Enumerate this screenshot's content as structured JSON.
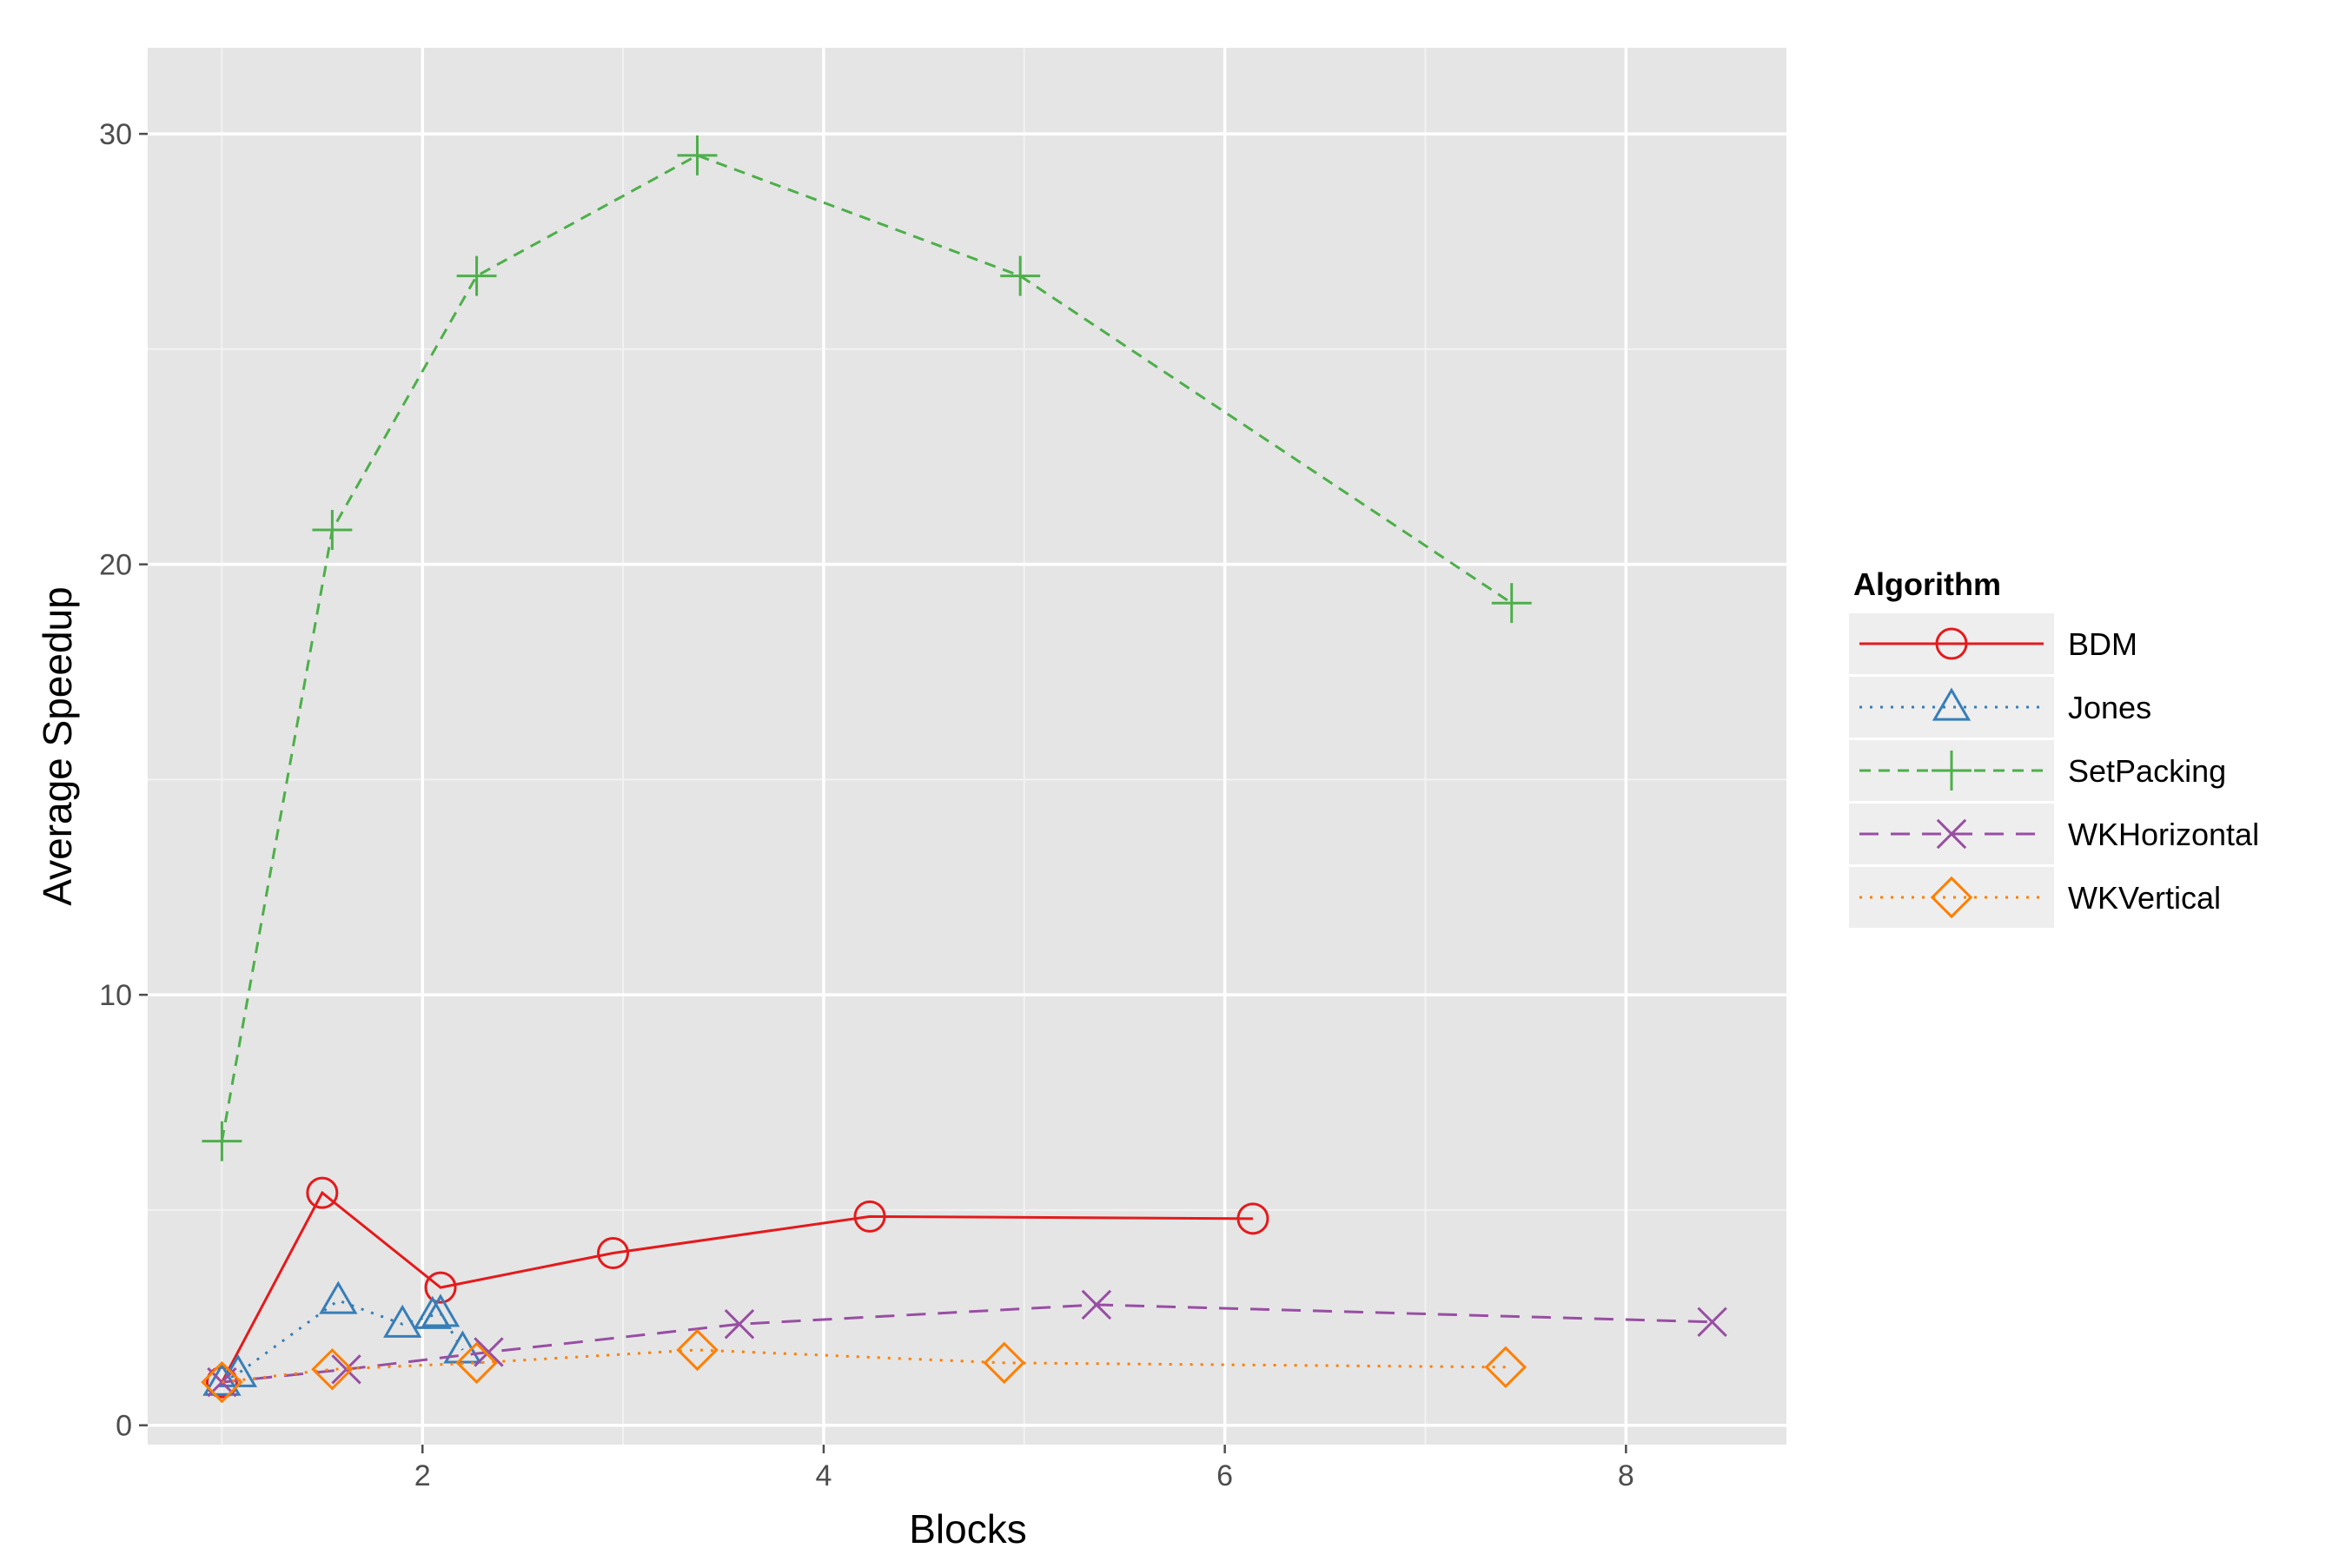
{
  "chart_data": {
    "type": "line",
    "xlabel": "Blocks",
    "ylabel": "Average Speedup",
    "xlim": [
      0.63,
      8.8
    ],
    "ylim": [
      -0.45,
      32.0
    ],
    "x_ticks": [
      2,
      4,
      6,
      8
    ],
    "x_tick_labels": [
      "2",
      "4",
      "6",
      "8"
    ],
    "x_minor_ticks": [
      1,
      3,
      5,
      7
    ],
    "y_ticks": [
      0,
      10,
      20,
      30
    ],
    "y_tick_labels": [
      "0",
      "10",
      "20",
      "30"
    ],
    "y_minor_ticks": [
      5,
      15,
      25
    ],
    "grid": true,
    "background": "#e5e5e5",
    "legend": {
      "title": "Algorithm",
      "position": "right"
    },
    "series": [
      {
        "name": "BDM",
        "color": "#e41a1c",
        "marker": "circle",
        "dash": "solid",
        "x": [
          1.0,
          1.5,
          2.09,
          2.95,
          4.23,
          6.14
        ],
        "y": [
          1.0,
          5.4,
          3.2,
          4.0,
          4.85,
          4.8
        ]
      },
      {
        "name": "Jones",
        "color": "#377eb8",
        "marker": "triangle",
        "dash": "dotted",
        "x": [
          1.0,
          1.08,
          1.58,
          1.9,
          2.05,
          2.09,
          2.2
        ],
        "y": [
          1.0,
          1.2,
          2.9,
          2.35,
          2.55,
          2.6,
          1.75
        ]
      },
      {
        "name": "SetPacking",
        "color": "#4daf4a",
        "marker": "plus",
        "dash": "dashed",
        "x": [
          1.0,
          1.55,
          2.27,
          3.37,
          4.98,
          7.43
        ],
        "y": [
          6.6,
          20.8,
          26.7,
          29.5,
          26.7,
          19.1
        ]
      },
      {
        "name": "WKHorizontal",
        "color": "#984ea3",
        "marker": "x",
        "dash": "longdash",
        "x": [
          1.0,
          1.62,
          2.33,
          3.58,
          5.36,
          8.43
        ],
        "y": [
          1.0,
          1.3,
          1.7,
          2.35,
          2.8,
          2.4
        ]
      },
      {
        "name": "WKVertical",
        "color": "#ff7f00",
        "marker": "diamond",
        "dash": "dotted",
        "x": [
          1.0,
          1.55,
          2.27,
          3.37,
          4.9,
          7.4
        ],
        "y": [
          1.0,
          1.3,
          1.45,
          1.75,
          1.45,
          1.35
        ]
      }
    ]
  }
}
